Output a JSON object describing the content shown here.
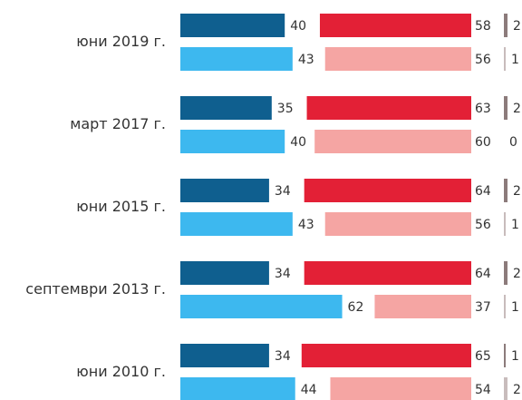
{
  "chart_data": {
    "type": "bar",
    "categories": [
      "юни 2019 г.",
      "март 2017 г.",
      "юни 2015 г.",
      "септември 2013 г.",
      "юни 2010 г."
    ],
    "series": [
      {
        "color": "#0f5f8f",
        "values": [
          40,
          35,
          34,
          34,
          34
        ]
      },
      {
        "color": "#e32036",
        "values": [
          58,
          63,
          64,
          64,
          65
        ]
      },
      {
        "color": "#8c7b7b",
        "values": [
          2,
          2,
          2,
          2,
          1
        ]
      },
      {
        "color": "#3db8ef",
        "values": [
          43,
          40,
          43,
          62,
          44
        ]
      },
      {
        "color": "#f5a5a3",
        "values": [
          56,
          60,
          56,
          37,
          54
        ]
      },
      {
        "color": "#c8bcbc",
        "values": [
          1,
          0,
          1,
          1,
          2
        ]
      }
    ]
  }
}
